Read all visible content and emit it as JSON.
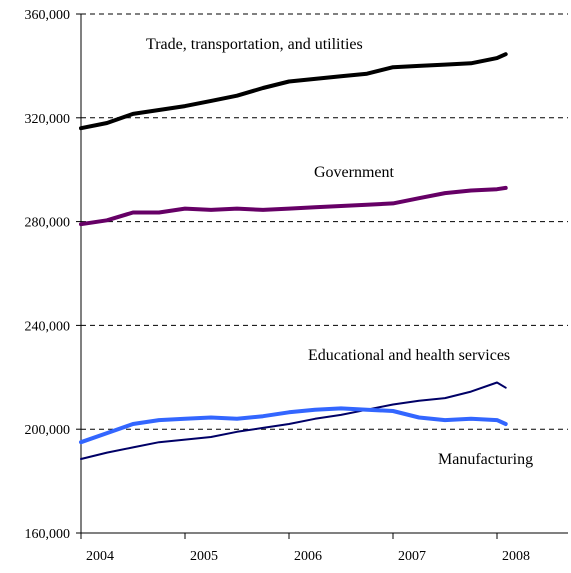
{
  "chart_data": {
    "type": "line",
    "title": "",
    "xlabel": "",
    "ylabel": "",
    "ylim": [
      160000,
      360000
    ],
    "xlim": [
      "2004-01",
      "2008-12"
    ],
    "yticks": [
      160000,
      200000,
      240000,
      280000,
      320000,
      360000
    ],
    "ytick_labels": [
      "160,000",
      "200,000",
      "240,000",
      "280,000",
      "320,000",
      "360,000"
    ],
    "xtick_labels": [
      "2004",
      "2005",
      "2006",
      "2007",
      "2008"
    ],
    "grid": "horizontal dashed",
    "legend": "none",
    "series": [
      {
        "name": "Trade, transportation, and utilities",
        "color": "#000000",
        "x": [
          "2004-01",
          "2004-04",
          "2004-07",
          "2004-10",
          "2005-01",
          "2005-04",
          "2005-07",
          "2005-10",
          "2006-01",
          "2006-04",
          "2006-07",
          "2006-10",
          "2007-01",
          "2007-04",
          "2007-07",
          "2007-10",
          "2008-01",
          "2008-02"
        ],
        "values": [
          316000,
          318000,
          321500,
          323000,
          324500,
          326500,
          328500,
          331500,
          334000,
          335000,
          336000,
          337000,
          339500,
          340000,
          340500,
          341000,
          343000,
          344500
        ]
      },
      {
        "name": "Government",
        "color": "#660066",
        "x": [
          "2004-01",
          "2004-04",
          "2004-07",
          "2004-10",
          "2005-01",
          "2005-04",
          "2005-07",
          "2005-10",
          "2006-01",
          "2006-04",
          "2006-07",
          "2006-10",
          "2007-01",
          "2007-04",
          "2007-07",
          "2007-10",
          "2008-01",
          "2008-02"
        ],
        "values": [
          279000,
          280500,
          283500,
          283500,
          285000,
          284500,
          285000,
          284500,
          285000,
          285500,
          286000,
          286500,
          287000,
          289000,
          291000,
          292000,
          292500,
          293000
        ]
      },
      {
        "name": "Educational and health services",
        "color": "#000066",
        "x": [
          "2004-01",
          "2004-04",
          "2004-07",
          "2004-10",
          "2005-01",
          "2005-04",
          "2005-07",
          "2005-10",
          "2006-01",
          "2006-04",
          "2006-07",
          "2006-10",
          "2007-01",
          "2007-04",
          "2007-07",
          "2007-10",
          "2008-01",
          "2008-02"
        ],
        "values": [
          188500,
          191000,
          193000,
          195000,
          196000,
          197000,
          199000,
          200500,
          202000,
          204000,
          205500,
          207500,
          209500,
          211000,
          212000,
          214500,
          218000,
          216000
        ]
      },
      {
        "name": "Manufacturing",
        "color": "#3366ff",
        "x": [
          "2004-01",
          "2004-04",
          "2004-07",
          "2004-10",
          "2005-01",
          "2005-04",
          "2005-07",
          "2005-10",
          "2006-01",
          "2006-04",
          "2006-07",
          "2006-10",
          "2007-01",
          "2007-04",
          "2007-07",
          "2007-10",
          "2008-01",
          "2008-02"
        ],
        "values": [
          195000,
          198500,
          202000,
          203500,
          204000,
          204500,
          204000,
          205000,
          206500,
          207500,
          208000,
          207500,
          207000,
          204500,
          203500,
          204000,
          203500,
          202000
        ]
      }
    ]
  }
}
